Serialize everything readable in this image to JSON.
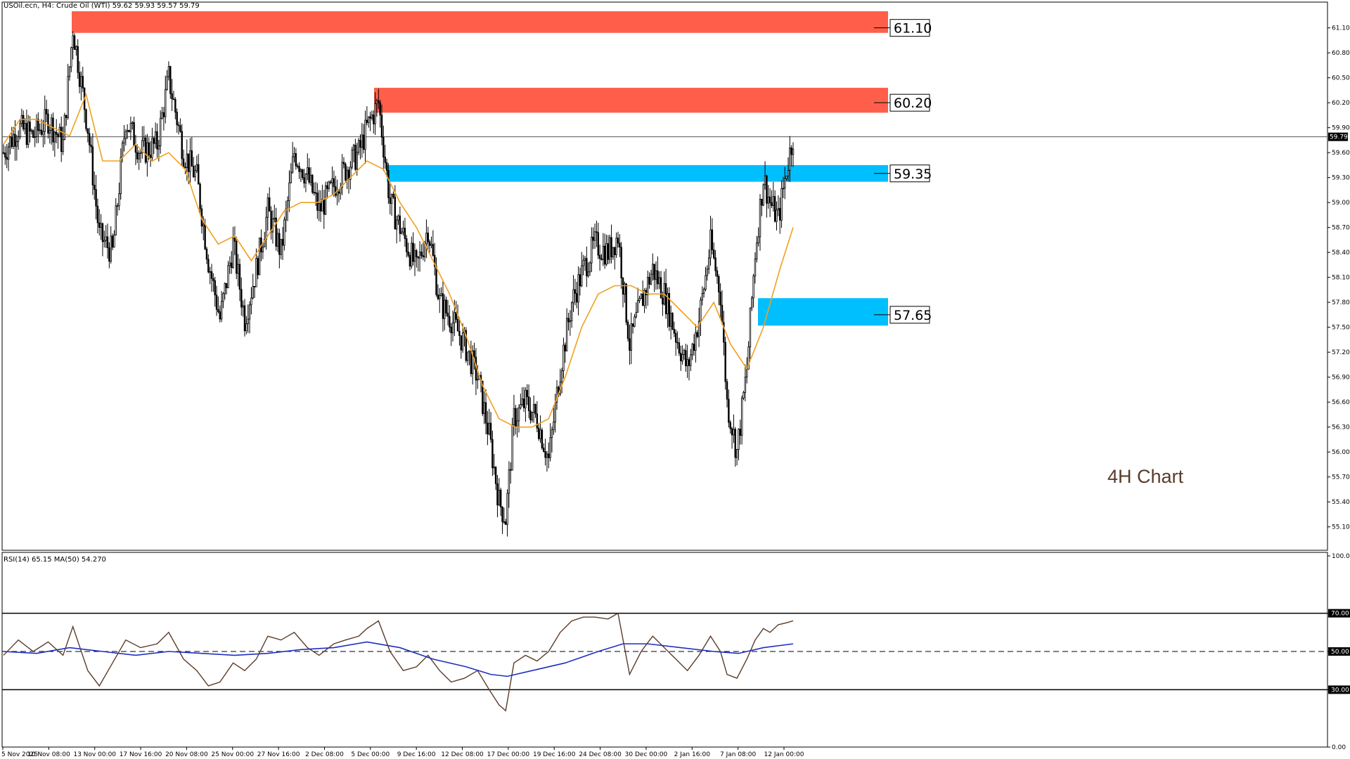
{
  "header": {
    "symbol_line": "USOil.ecn, H4:  Crude Oil (WTI)  59.62 59.93 59.57 59.79",
    "rsi_line": "RSI(14) 65.15 MA(50) 54.270",
    "chart_title": "4H Chart"
  },
  "colors": {
    "up_candle": "#000000",
    "down_candle": "#000000",
    "ma_line": "#f0a020",
    "resistance_zone": "#ff5f4a",
    "support_zone": "#00bfff",
    "rsi_line": "#5a3c2a",
    "rsi_ma_line": "#1f2fbf",
    "chart_label": "#5a3c2a"
  },
  "chart_data": [
    {
      "type": "candlestick",
      "title": "USOil.ecn, H4: Crude Oil (WTI)",
      "ohlc_header": {
        "open": 59.62,
        "high": 59.93,
        "low": 59.57,
        "close": 59.79
      },
      "ylim": [
        54.9,
        61.4
      ],
      "y_ticks": [
        "61.10",
        "60.80",
        "60.50",
        "60.20",
        "59.90",
        "59.60",
        "59.30",
        "59.00",
        "58.70",
        "58.40",
        "58.10",
        "57.80",
        "57.50",
        "57.20",
        "56.90",
        "56.60",
        "56.30",
        "56.00",
        "55.70",
        "55.40",
        "55.10"
      ],
      "current_price": "59.79",
      "x_ticks": [
        "5 Nov 2025",
        "10 Nov 08:00",
        "13 Nov 00:00",
        "17 Nov 16:00",
        "20 Nov 08:00",
        "25 Nov 00:00",
        "27 Nov 16:00",
        "2 Dec 08:00",
        "5 Dec 00:00",
        "9 Dec 16:00",
        "12 Dec 08:00",
        "17 Dec 00:00",
        "19 Dec 16:00",
        "24 Dec 08:00",
        "30 Dec 00:00",
        "2 Jan 16:00",
        "7 Jan 08:00",
        "12 Jan 00:00"
      ],
      "zones": [
        {
          "kind": "resistance",
          "label": "61.10",
          "price": 61.1,
          "top": 61.3,
          "bottom": 61.04
        },
        {
          "kind": "resistance",
          "label": "60.20",
          "price": 60.2,
          "top": 60.38,
          "bottom": 60.08
        },
        {
          "kind": "support",
          "label": "59.35",
          "price": 59.35,
          "top": 59.45,
          "bottom": 59.25
        },
        {
          "kind": "support",
          "label": "57.65",
          "price": 57.65,
          "top": 57.85,
          "bottom": 57.52
        }
      ],
      "close_path": [
        [
          0,
          59.6
        ],
        [
          9,
          59.9
        ],
        [
          18,
          59.8
        ],
        [
          27,
          60.0
        ],
        [
          36,
          59.7
        ],
        [
          42,
          61.1
        ],
        [
          51,
          59.9
        ],
        [
          58,
          58.6
        ],
        [
          66,
          58.4
        ],
        [
          74,
          60.0
        ],
        [
          83,
          59.6
        ],
        [
          93,
          59.7
        ],
        [
          100,
          60.5
        ],
        [
          109,
          59.6
        ],
        [
          117,
          59.3
        ],
        [
          124,
          58.3
        ],
        [
          131,
          57.6
        ],
        [
          139,
          58.5
        ],
        [
          146,
          57.6
        ],
        [
          153,
          58.2
        ],
        [
          160,
          58.9
        ],
        [
          168,
          58.4
        ],
        [
          176,
          59.6
        ],
        [
          184,
          59.3
        ],
        [
          191,
          58.9
        ],
        [
          200,
          59.2
        ],
        [
          207,
          59.4
        ],
        [
          215,
          59.6
        ],
        [
          220,
          59.9
        ],
        [
          227,
          60.2
        ],
        [
          234,
          59.0
        ],
        [
          242,
          58.6
        ],
        [
          250,
          58.2
        ],
        [
          257,
          58.7
        ],
        [
          264,
          57.8
        ],
        [
          271,
          57.6
        ],
        [
          279,
          57.3
        ],
        [
          287,
          56.9
        ],
        [
          294,
          56.2
        ],
        [
          300,
          55.4
        ],
        [
          304,
          55.2
        ],
        [
          309,
          56.4
        ],
        [
          316,
          56.6
        ],
        [
          323,
          56.4
        ],
        [
          330,
          55.9
        ],
        [
          337,
          57.0
        ],
        [
          344,
          57.8
        ],
        [
          351,
          58.2
        ],
        [
          358,
          58.5
        ],
        [
          366,
          58.4
        ],
        [
          372,
          58.6
        ],
        [
          379,
          57.3
        ],
        [
          386,
          57.8
        ],
        [
          393,
          58.2
        ],
        [
          400,
          57.9
        ],
        [
          407,
          57.4
        ],
        [
          414,
          57.0
        ],
        [
          421,
          57.6
        ],
        [
          428,
          58.5
        ],
        [
          434,
          57.9
        ],
        [
          438,
          56.6
        ],
        [
          444,
          56.0
        ],
        [
          450,
          57.0
        ],
        [
          455,
          58.4
        ],
        [
          460,
          59.3
        ],
        [
          464,
          59.0
        ],
        [
          469,
          58.8
        ],
        [
          474,
          59.4
        ],
        [
          478,
          59.8
        ]
      ],
      "ma_path": [
        [
          0,
          59.7
        ],
        [
          10,
          60.0
        ],
        [
          20,
          60.0
        ],
        [
          30,
          59.9
        ],
        [
          40,
          59.8
        ],
        [
          50,
          60.3
        ],
        [
          60,
          59.5
        ],
        [
          70,
          59.5
        ],
        [
          80,
          59.7
        ],
        [
          90,
          59.5
        ],
        [
          100,
          59.6
        ],
        [
          110,
          59.4
        ],
        [
          120,
          58.8
        ],
        [
          130,
          58.5
        ],
        [
          140,
          58.6
        ],
        [
          150,
          58.3
        ],
        [
          160,
          58.6
        ],
        [
          170,
          58.9
        ],
        [
          180,
          59.0
        ],
        [
          190,
          59.0
        ],
        [
          200,
          59.1
        ],
        [
          210,
          59.3
        ],
        [
          220,
          59.5
        ],
        [
          230,
          59.4
        ],
        [
          240,
          59.0
        ],
        [
          250,
          58.7
        ],
        [
          260,
          58.3
        ],
        [
          270,
          57.9
        ],
        [
          280,
          57.4
        ],
        [
          290,
          56.8
        ],
        [
          300,
          56.4
        ],
        [
          310,
          56.3
        ],
        [
          320,
          56.3
        ],
        [
          330,
          56.4
        ],
        [
          340,
          56.9
        ],
        [
          350,
          57.5
        ],
        [
          360,
          57.9
        ],
        [
          370,
          58.0
        ],
        [
          380,
          58.0
        ],
        [
          390,
          57.9
        ],
        [
          400,
          57.9
        ],
        [
          410,
          57.7
        ],
        [
          420,
          57.5
        ],
        [
          430,
          57.8
        ],
        [
          440,
          57.3
        ],
        [
          450,
          57.0
        ],
        [
          460,
          57.5
        ],
        [
          470,
          58.2
        ],
        [
          478,
          58.7
        ]
      ]
    },
    {
      "type": "line",
      "title": "RSI(14) 65.15 MA(50) 54.270",
      "ylim": [
        0,
        100
      ],
      "y_ticks": [
        "100.00",
        "70.00",
        "50.00",
        "30.00",
        "0.00"
      ],
      "levels": [
        70,
        50,
        30
      ],
      "series": [
        {
          "name": "RSI(14)",
          "values": [
            [
              0,
              48
            ],
            [
              9,
              56
            ],
            [
              18,
              50
            ],
            [
              27,
              55
            ],
            [
              36,
              48
            ],
            [
              42,
              63
            ],
            [
              51,
              40
            ],
            [
              58,
              32
            ],
            [
              66,
              44
            ],
            [
              74,
              56
            ],
            [
              83,
              52
            ],
            [
              93,
              54
            ],
            [
              100,
              60
            ],
            [
              109,
              46
            ],
            [
              117,
              40
            ],
            [
              124,
              32
            ],
            [
              131,
              34
            ],
            [
              139,
              44
            ],
            [
              146,
              40
            ],
            [
              153,
              46
            ],
            [
              160,
              58
            ],
            [
              168,
              56
            ],
            [
              176,
              60
            ],
            [
              184,
              52
            ],
            [
              191,
              48
            ],
            [
              200,
              54
            ],
            [
              207,
              56
            ],
            [
              215,
              58
            ],
            [
              220,
              62
            ],
            [
              227,
              66
            ],
            [
              234,
              50
            ],
            [
              242,
              40
            ],
            [
              250,
              42
            ],
            [
              257,
              48
            ],
            [
              264,
              40
            ],
            [
              271,
              34
            ],
            [
              279,
              36
            ],
            [
              287,
              40
            ],
            [
              294,
              30
            ],
            [
              300,
              22
            ],
            [
              304,
              19
            ],
            [
              309,
              44
            ],
            [
              316,
              48
            ],
            [
              323,
              45
            ],
            [
              330,
              50
            ],
            [
              337,
              60
            ],
            [
              344,
              66
            ],
            [
              351,
              68
            ],
            [
              358,
              68
            ],
            [
              366,
              67
            ],
            [
              372,
              70
            ],
            [
              379,
              38
            ],
            [
              386,
              50
            ],
            [
              393,
              58
            ],
            [
              400,
              52
            ],
            [
              407,
              46
            ],
            [
              414,
              40
            ],
            [
              421,
              48
            ],
            [
              428,
              58
            ],
            [
              434,
              50
            ],
            [
              438,
              38
            ],
            [
              444,
              36
            ],
            [
              450,
              46
            ],
            [
              455,
              56
            ],
            [
              460,
              62
            ],
            [
              464,
              60
            ],
            [
              469,
              64
            ],
            [
              474,
              65
            ],
            [
              478,
              66
            ]
          ]
        },
        {
          "name": "MA(50)",
          "values": [
            [
              0,
              50
            ],
            [
              20,
              49
            ],
            [
              40,
              52
            ],
            [
              60,
              50
            ],
            [
              80,
              48
            ],
            [
              100,
              50
            ],
            [
              120,
              49
            ],
            [
              140,
              48
            ],
            [
              160,
              49
            ],
            [
              180,
              51
            ],
            [
              200,
              52
            ],
            [
              220,
              55
            ],
            [
              240,
              52
            ],
            [
              260,
              46
            ],
            [
              280,
              42
            ],
            [
              295,
              38
            ],
            [
              305,
              37
            ],
            [
              320,
              40
            ],
            [
              340,
              44
            ],
            [
              360,
              50
            ],
            [
              375,
              54
            ],
            [
              390,
              54
            ],
            [
              410,
              52
            ],
            [
              430,
              50
            ],
            [
              445,
              49
            ],
            [
              460,
              52
            ],
            [
              478,
              54
            ]
          ]
        }
      ]
    }
  ]
}
